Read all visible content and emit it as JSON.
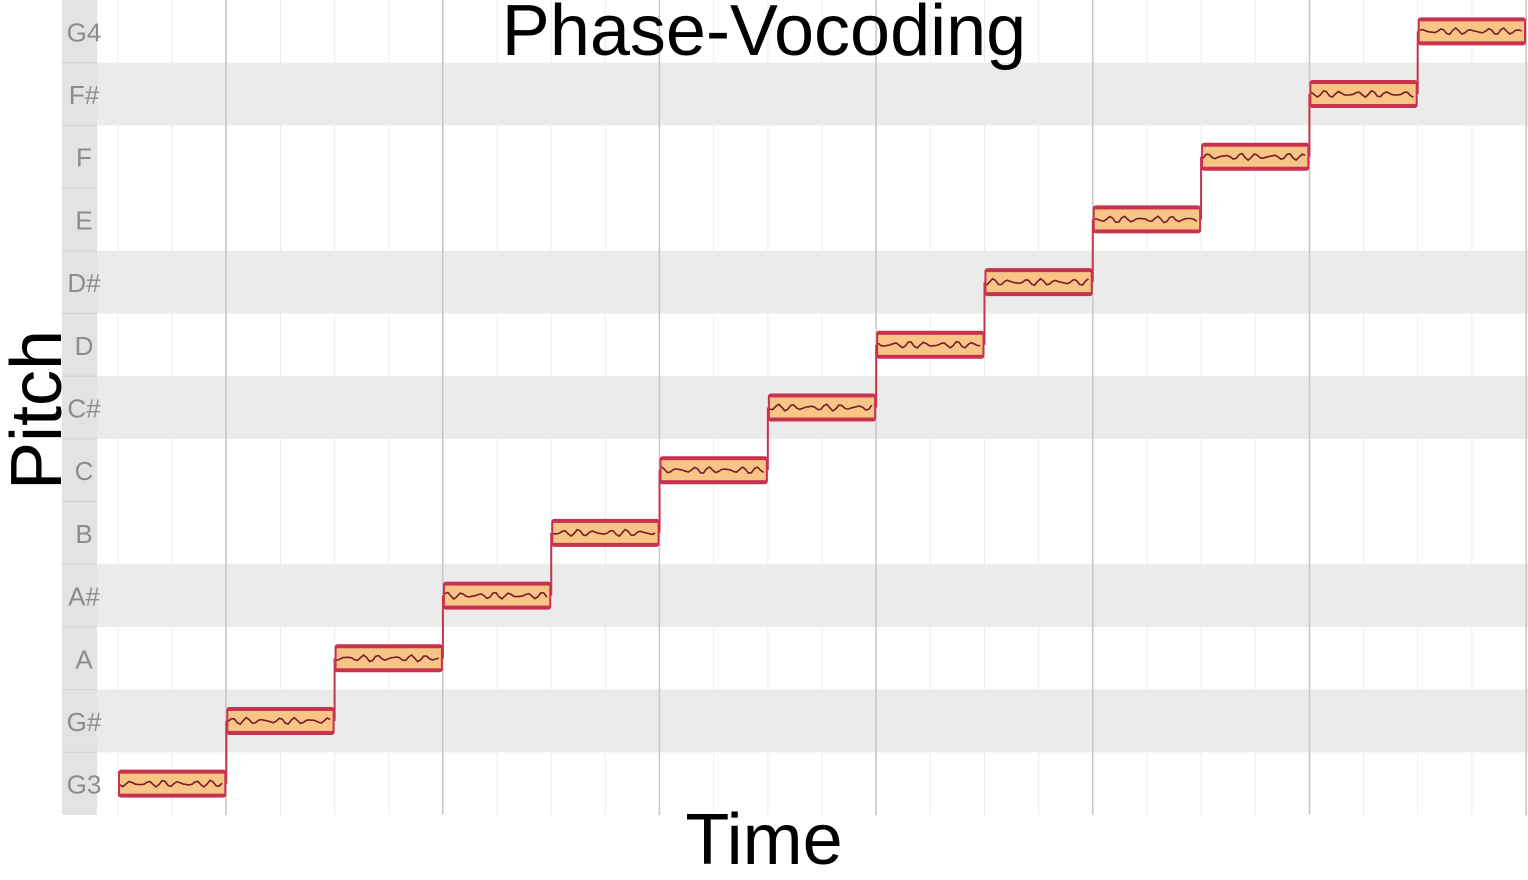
{
  "chart_data": {
    "type": "line",
    "title": "Phase-Vocoding",
    "xlabel": "Time",
    "ylabel": "Pitch",
    "y_tick_labels": [
      "G3",
      "G#",
      "A",
      "A#",
      "B",
      "C",
      "C#",
      "D",
      "D#",
      "E",
      "F",
      "F#",
      "G4"
    ],
    "ylim": [
      "G3",
      "G4"
    ],
    "x_ticks_labeled": false,
    "grid": true,
    "series": [
      {
        "notes": [
          "G3",
          "G#",
          "A",
          "A#",
          "B",
          "C",
          "C#",
          "D",
          "D#",
          "E",
          "F",
          "F#",
          "G4"
        ]
      }
    ]
  },
  "colors": {
    "band_shade": "#ebebeb",
    "label_strip": "#e3e3e3",
    "label_text": "#8c8c8c",
    "major_grid": "#c6c6c6",
    "minor_grid": "#ececec",
    "note_outer": "#c8324e",
    "note_inner": "#f7c586",
    "note_core": "#7a1a2a"
  }
}
